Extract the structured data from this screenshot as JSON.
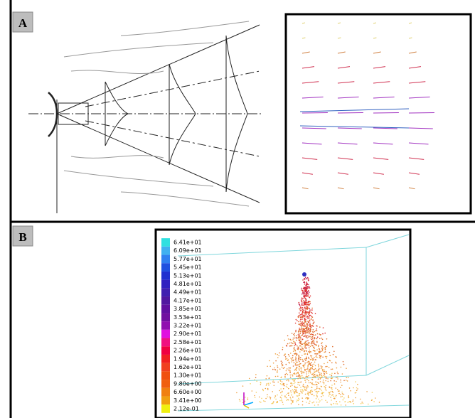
{
  "panels": [
    {
      "label": "A"
    },
    {
      "label": "B",
      "colorbar": {
        "labels": [
          "6.41e+01",
          "6.09e+01",
          "5.77e+01",
          "5.45e+01",
          "5.13e+01",
          "4.81e+01",
          "4.49e+01",
          "4.17e+01",
          "3.85e+01",
          "3.53e+01",
          "3.22e+01",
          "2.90e+01",
          "2.58e+01",
          "2.26e+01",
          "1.94e+01",
          "1.62e+01",
          "1.30e+01",
          "9.80e+00",
          "6.60e+00",
          "3.41e+00",
          "2.12e-01"
        ]
      }
    }
  ]
}
